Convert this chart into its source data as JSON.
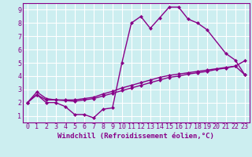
{
  "background_color": "#cceef0",
  "grid_color": "#ffffff",
  "line_color": "#880088",
  "marker": "D",
  "markersize": 2.5,
  "linewidth": 1.0,
  "xlim": [
    -0.5,
    23.5
  ],
  "ylim": [
    0.5,
    9.5
  ],
  "xlabel": "Windchill (Refroidissement éolien,°C)",
  "xlabel_fontsize": 6.5,
  "xtick_labels": [
    "0",
    "1",
    "2",
    "3",
    "4",
    "5",
    "6",
    "7",
    "8",
    "9",
    "10",
    "11",
    "12",
    "13",
    "14",
    "15",
    "16",
    "17",
    "18",
    "19",
    "20",
    "21",
    "22",
    "23"
  ],
  "ytick_labels": [
    "1",
    "2",
    "3",
    "4",
    "5",
    "6",
    "7",
    "8",
    "9"
  ],
  "yticks": [
    1,
    2,
    3,
    4,
    5,
    6,
    7,
    8,
    9
  ],
  "tick_fontsize": 6,
  "line1_x": [
    0,
    1,
    2,
    3,
    4,
    5,
    6,
    7,
    8,
    9,
    10,
    11,
    12,
    13,
    14,
    15,
    16,
    17,
    18,
    19,
    21,
    22,
    23
  ],
  "line1_y": [
    2.0,
    2.6,
    2.0,
    2.0,
    1.7,
    1.1,
    1.1,
    0.85,
    1.5,
    1.6,
    5.0,
    8.0,
    8.5,
    7.6,
    8.4,
    9.2,
    9.2,
    8.3,
    8.0,
    7.5,
    5.7,
    5.2,
    4.1
  ],
  "line2_x": [
    0,
    1,
    2,
    3,
    4,
    5,
    6,
    7,
    8,
    9,
    10,
    11,
    12,
    13,
    14,
    15,
    16,
    17,
    18,
    19,
    20,
    21,
    22,
    23
  ],
  "line2_y": [
    2.0,
    2.8,
    2.3,
    2.2,
    2.15,
    2.1,
    2.2,
    2.3,
    2.5,
    2.7,
    2.9,
    3.1,
    3.3,
    3.5,
    3.7,
    3.9,
    4.0,
    4.15,
    4.25,
    4.35,
    4.5,
    4.6,
    4.75,
    5.15
  ],
  "line3_x": [
    0,
    1,
    2,
    3,
    4,
    5,
    6,
    7,
    8,
    9,
    10,
    11,
    12,
    13,
    14,
    15,
    16,
    17,
    18,
    19,
    20,
    21,
    22,
    23
  ],
  "line3_y": [
    2.0,
    2.6,
    2.2,
    2.2,
    2.2,
    2.2,
    2.3,
    2.4,
    2.65,
    2.85,
    3.1,
    3.3,
    3.5,
    3.7,
    3.9,
    4.05,
    4.15,
    4.25,
    4.35,
    4.45,
    4.55,
    4.65,
    4.75,
    4.1
  ]
}
